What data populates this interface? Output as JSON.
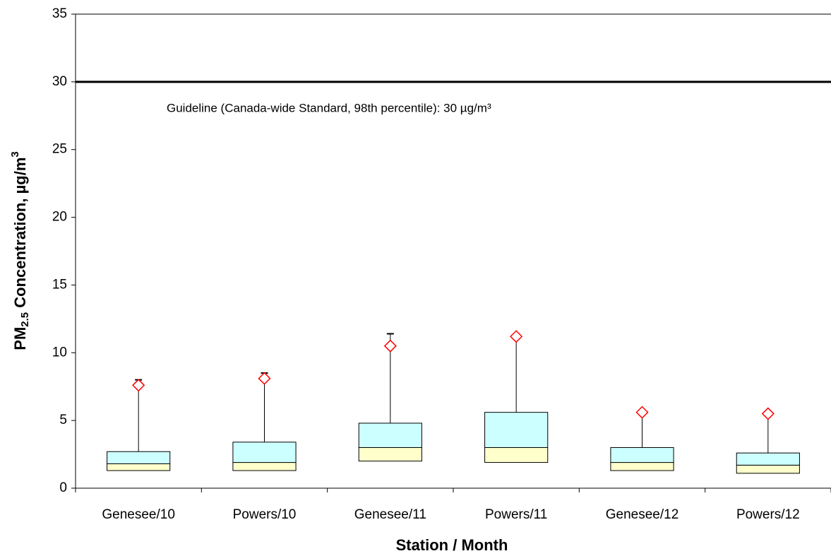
{
  "chart_data": {
    "type": "box",
    "x_label": "Station / Month",
    "y_label": {
      "parts": [
        "PM",
        "2.5",
        " Concentration, µg/m",
        "3"
      ]
    },
    "categories": [
      "Genesee/10",
      "Powers/10",
      "Genesee/11",
      "Powers/11",
      "Genesee/12",
      "Powers/12"
    ],
    "boxes": [
      {
        "q1": 1.3,
        "median": 1.8,
        "q3": 2.7,
        "max": 8.0,
        "marker": 7.6
      },
      {
        "q1": 1.3,
        "median": 1.9,
        "q3": 3.4,
        "max": 8.5,
        "marker": 8.1
      },
      {
        "q1": 2.0,
        "median": 3.0,
        "q3": 4.8,
        "max": 11.4,
        "marker": 10.5
      },
      {
        "q1": 1.9,
        "median": 3.0,
        "q3": 5.6,
        "max": 11.2,
        "marker": 11.2
      },
      {
        "q1": 1.3,
        "median": 1.9,
        "q3": 3.0,
        "max": 5.6,
        "marker": 5.6
      },
      {
        "q1": 1.1,
        "median": 1.7,
        "q3": 2.6,
        "max": 5.5,
        "marker": 5.5
      }
    ],
    "lower_color": "#ffffcc",
    "upper_color": "#ccffff",
    "marker_color": "#ff0000",
    "reference_line": {
      "value": 30,
      "label": "Guideline (Canada-wide Standard, 98th percentile): 30 µg/m³"
    },
    "ylim": [
      0,
      35
    ],
    "yticks": [
      0,
      5,
      10,
      15,
      20,
      25,
      30,
      35
    ]
  }
}
